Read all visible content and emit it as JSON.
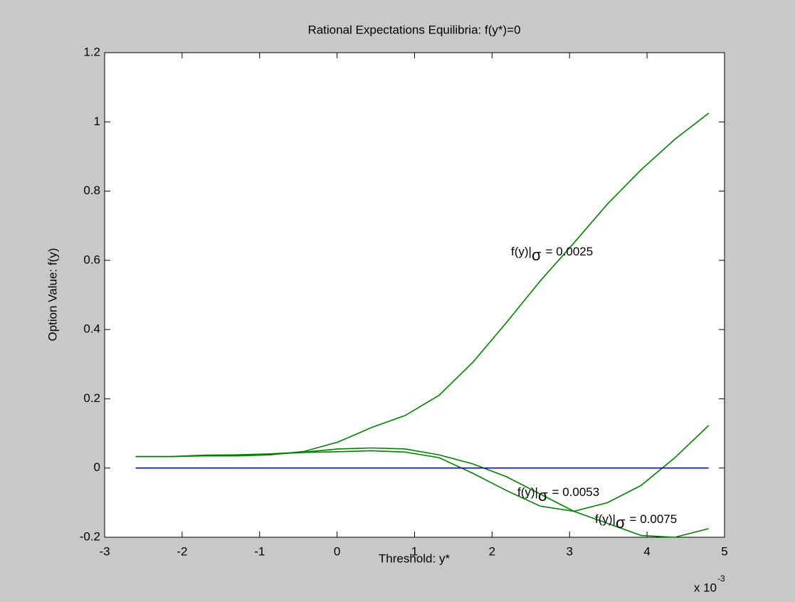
{
  "chart_data": {
    "type": "line",
    "title": "Rational Expectations Equilibria: f(y*)=0",
    "x_label": "Threshold: y*",
    "y_label": "Option Value: f(y)",
    "x_multiplier": "x 10",
    "x_multiplier_exponent": "-3",
    "xlim": [
      -3,
      5
    ],
    "xticks": [
      -3,
      -2,
      -1,
      0,
      1,
      2,
      3,
      4,
      5
    ],
    "ylim": [
      -0.2,
      1.2
    ],
    "yticks": [
      -0.2,
      0,
      0.2,
      0.4,
      0.6,
      0.8,
      1,
      1.2
    ],
    "series": [
      {
        "color": "#008000",
        "x": [
          -2.6,
          -2.165,
          -1.73,
          -1.295,
          -0.86,
          -0.425,
          0.01,
          0.445,
          0.88,
          1.315,
          1.75,
          2.185,
          2.62,
          3.055,
          3.49,
          3.925,
          4.36,
          4.795
        ],
        "values": [
          0.033,
          0.033,
          0.035,
          0.035,
          0.038,
          0.048,
          0.075,
          0.117,
          0.152,
          0.21,
          0.305,
          0.42,
          0.54,
          0.65,
          0.763,
          0.862,
          0.95,
          1.025
        ]
      },
      {
        "color": "#008000",
        "x": [
          -2.6,
          -2.165,
          -1.73,
          -1.295,
          -0.86,
          -0.425,
          0.01,
          0.445,
          0.88,
          1.315,
          1.75,
          2.185,
          2.62,
          3.055,
          3.49,
          3.925,
          4.36,
          4.795
        ],
        "values": [
          0.033,
          0.033,
          0.037,
          0.038,
          0.041,
          0.046,
          0.055,
          0.058,
          0.055,
          0.038,
          0.012,
          -0.025,
          -0.075,
          -0.125,
          -0.1,
          -0.05,
          0.03,
          0.123
        ]
      },
      {
        "color": "#008000",
        "x": [
          -2.6,
          -2.165,
          -1.73,
          -1.295,
          -0.86,
          -0.425,
          0.01,
          0.445,
          0.88,
          1.315,
          1.75,
          2.185,
          2.62,
          3.055,
          3.49,
          3.925,
          4.36,
          4.795
        ],
        "values": [
          0.033,
          0.033,
          0.036,
          0.036,
          0.04,
          0.045,
          0.047,
          0.05,
          0.046,
          0.03,
          -0.015,
          -0.065,
          -0.11,
          -0.125,
          -0.16,
          -0.195,
          -0.2,
          -0.175
        ]
      },
      {
        "color": "#0000ff",
        "x": [
          -2.6,
          4.795
        ],
        "values": [
          0,
          0
        ]
      }
    ],
    "annotations": [
      {
        "text": "f(y)|",
        "symbol": "σ",
        "value_text": "= 0.0025"
      },
      {
        "text": "f(y)|",
        "symbol": "σ",
        "value_text": "= 0.0053"
      },
      {
        "text": "f(y)|",
        "symbol": "σ",
        "value_text": "= 0.0075"
      }
    ]
  }
}
